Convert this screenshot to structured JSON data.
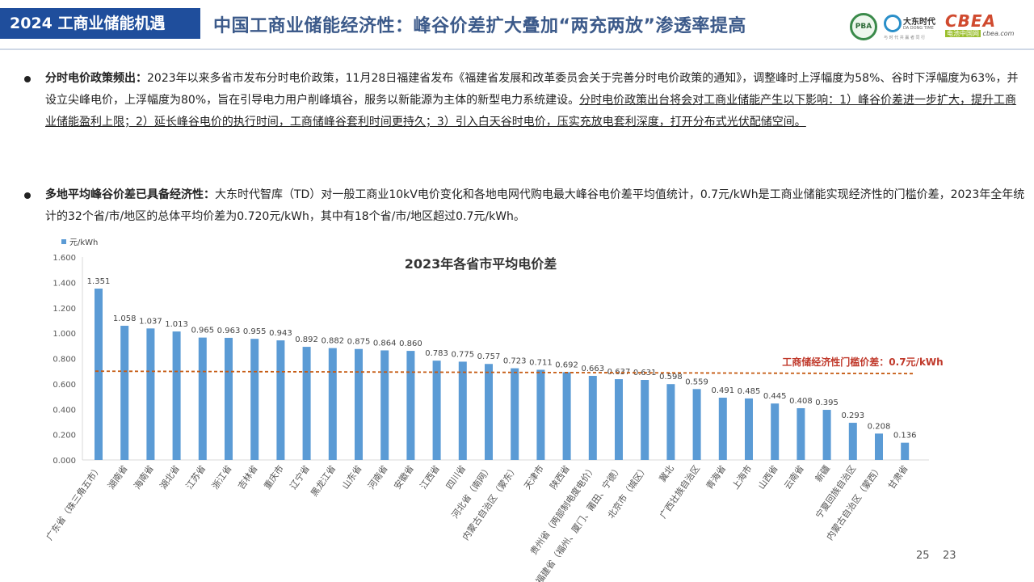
{
  "header": {
    "section_label": "2024 工商业储能机遇",
    "title": "中国工商业储能经济性：峰谷价差扩大叠加“两充两放”渗透率提高",
    "logos": {
      "pba": "PBA",
      "dadong_name": "大东时代",
      "dadong_sub": "DA DONG TIME",
      "dadong_tag": "与 时 代 共 赢 者 同 行",
      "cbea_word": "CBEA",
      "cbea_tag": "电池中国网",
      "cbea_url": "cbea.com"
    }
  },
  "bullets": [
    {
      "lead": "分时电价政策频出：",
      "body": "2023年以来多省市发布分时电价政策，11月28日福建省发布《福建省发展和改革委员会关于完善分时电价政策的通知》，调整峰时上浮幅度为58%、谷时下浮幅度为63%，并设立尖峰电价，上浮幅度为80%，旨在引导电力用户削峰填谷，服务以新能源为主体的新型电力系统建设。",
      "emphasis": "分时电价政策出台将会对工商业储能产生以下影响：1）峰谷价差进一步扩大，提升工商业储能盈利上限；2）延长峰谷电价的执行时间，工商储峰谷套利时间更持久；3）引入白天谷时电价，压实充放电套利深度，打开分布式光伏配储空间。"
    },
    {
      "lead": "多地平均峰谷价差已具备经济性：",
      "body": "大东时代智库（TD）对一般工商业10kV电价变化和各地电网代购电最大峰谷电价差平均值统计，0.7元/kWh是工商业储能实现经济性的门槛价差，2023年全年统计的32个省/市/地区的总体平均价差为0.720元/kWh，其中有18个省/市/地区超过0.7元/kWh。"
    }
  ],
  "chart_data": {
    "type": "bar",
    "title": "2023年各省市平均电价差",
    "legend": "元/kWh",
    "legend_position": "top-left",
    "ylim": [
      0,
      1.6
    ],
    "yticks": [
      "0.000",
      "0.200",
      "0.400",
      "0.600",
      "0.800",
      "1.000",
      "1.200",
      "1.400",
      "1.600"
    ],
    "grid": false,
    "bar_color": "#5b9bd5",
    "categories": [
      "广东省（珠三角五市）",
      "湖南省",
      "海南省",
      "湖北省",
      "江苏省",
      "浙江省",
      "吉林省",
      "重庆市",
      "辽宁省",
      "黑龙江省",
      "山东省",
      "河南省",
      "安徽省",
      "江西省",
      "四川省",
      "河北省（南网）",
      "内蒙古自治区（蒙东）",
      "天津市",
      "陕西省",
      "贵州省（两部制电度电价）",
      "福建省（福州、厦门、莆田、宁德）",
      "北京市（城区）",
      "冀北",
      "广西壮族自治区",
      "青海省",
      "上海市",
      "山西省",
      "云南省",
      "新疆",
      "宁夏回族自治区",
      "内蒙古自治区（蒙西）",
      "甘肃省"
    ],
    "values": [
      1.351,
      1.058,
      1.037,
      1.013,
      0.965,
      0.963,
      0.955,
      0.943,
      0.892,
      0.882,
      0.875,
      0.864,
      0.86,
      0.783,
      0.775,
      0.757,
      0.723,
      0.711,
      0.692,
      0.663,
      0.637,
      0.631,
      0.598,
      0.559,
      0.491,
      0.485,
      0.445,
      0.408,
      0.395,
      0.293,
      0.208,
      0.136
    ],
    "value_labels": [
      "1.351",
      "1.058",
      "1.037",
      "1.013",
      "0.965",
      "0.963",
      "0.955",
      "0.943",
      "0.892",
      "0.882",
      "0.875",
      "0.864",
      "0.860",
      "0.783",
      "0.775",
      "0.757",
      "0.723",
      "0.711",
      "0.692",
      "0.663",
      "0.637",
      "0.631",
      "0.598",
      "0.559",
      "0.491",
      "0.485",
      "0.445",
      "0.408",
      "0.395",
      "0.293",
      "0.208",
      "0.136"
    ],
    "threshold": {
      "value": 0.7,
      "label": "工商储经济性门槛价差：0.7元/kWh",
      "color": "#c55a11"
    }
  },
  "footer": {
    "page_a": "25",
    "page_b": "23"
  }
}
